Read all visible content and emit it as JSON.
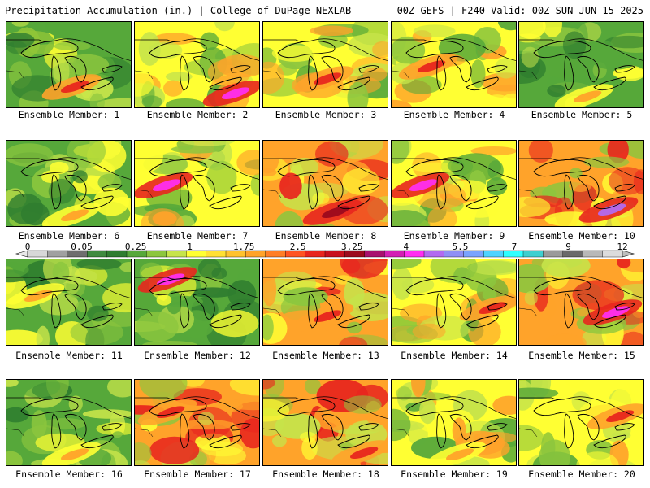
{
  "header": {
    "left": "Precipitation Accumulation (in.) | College of DuPage NEXLAB",
    "right": "00Z GEFS | F240 Valid: 00Z SUN JUN 15 2025"
  },
  "panel_label_prefix": "Ensemble Member: ",
  "members": [
    {
      "number": "1",
      "dominant": "green",
      "wet_band": "south-central"
    },
    {
      "number": "2",
      "dominant": "yellow",
      "wet_band": "southeast-magenta"
    },
    {
      "number": "3",
      "dominant": "yellow",
      "wet_band": "central-red"
    },
    {
      "number": "4",
      "dominant": "yellow",
      "wet_band": "west-red"
    },
    {
      "number": "5",
      "dominant": "green",
      "wet_band": "south-orange"
    },
    {
      "number": "6",
      "dominant": "green",
      "wet_band": "south-orange"
    },
    {
      "number": "7",
      "dominant": "yellow",
      "wet_band": "west-magenta"
    },
    {
      "number": "8",
      "dominant": "orange",
      "wet_band": "south-red"
    },
    {
      "number": "9",
      "dominant": "yellow",
      "wet_band": "west-magenta"
    },
    {
      "number": "10",
      "dominant": "orange",
      "wet_band": "southeast-purple"
    },
    {
      "number": "11",
      "dominant": "green",
      "wet_band": "west-orange"
    },
    {
      "number": "12",
      "dominant": "green",
      "wet_band": "northwest-magenta"
    },
    {
      "number": "13",
      "dominant": "orange",
      "wet_band": "central-red"
    },
    {
      "number": "14",
      "dominant": "yellow",
      "wet_band": "east-red"
    },
    {
      "number": "15",
      "dominant": "orange",
      "wet_band": "east-magenta"
    },
    {
      "number": "16",
      "dominant": "green",
      "wet_band": "south-orange"
    },
    {
      "number": "17",
      "dominant": "orange",
      "wet_band": "northwest-red"
    },
    {
      "number": "18",
      "dominant": "orange",
      "wet_band": "southeast-red"
    },
    {
      "number": "19",
      "dominant": "yellow",
      "wet_band": "south-orange"
    },
    {
      "number": "20",
      "dominant": "yellow",
      "wet_band": "east-orange"
    }
  ],
  "colorbar": {
    "tick_labels": [
      {
        "value": "0",
        "level": 0
      },
      {
        "value": "0.05",
        "level": 2
      },
      {
        "value": "0.25",
        "level": 4
      },
      {
        "value": "1",
        "level": 6
      },
      {
        "value": "1.75",
        "level": 8
      },
      {
        "value": "2.5",
        "level": 10
      },
      {
        "value": "3.25",
        "level": 12
      },
      {
        "value": "4",
        "level": 14
      },
      {
        "value": "5.5",
        "level": 16
      },
      {
        "value": "7",
        "level": 18
      },
      {
        "value": "9",
        "level": 20
      },
      {
        "value": "12",
        "level": 22
      }
    ],
    "colors": [
      "#d8d8d8",
      "#a0a0a0",
      "#6e6e6e",
      "#3f8a3f",
      "#2f7d2f",
      "#56a83a",
      "#8cc63e",
      "#c6e44a",
      "#ffff33",
      "#ffe033",
      "#ffc22e",
      "#ffa32a",
      "#ff7e26",
      "#ff5422",
      "#e8261e",
      "#c8101e",
      "#9c0a1e",
      "#a8106e",
      "#d31fb4",
      "#ff2ef0",
      "#b26af0",
      "#8f8ff5",
      "#7aa3ff",
      "#4fd3ff",
      "#2fffff",
      "#3fcfcf",
      "#9a9a9a",
      "#6a6a6a",
      "#b8b8b8",
      "#dcdcdc"
    ]
  },
  "palette": {
    "dark_green": "#2f7d2f",
    "green": "#56a83a",
    "light_green": "#8cc63e",
    "yellow_green": "#c6e44a",
    "yellow": "#ffff33",
    "orange": "#ffa32a",
    "red": "#e8261e",
    "dark_red": "#9c0a1e",
    "magenta": "#ff2ef0",
    "purple": "#b26af0",
    "gray": "#a0a0a0"
  }
}
